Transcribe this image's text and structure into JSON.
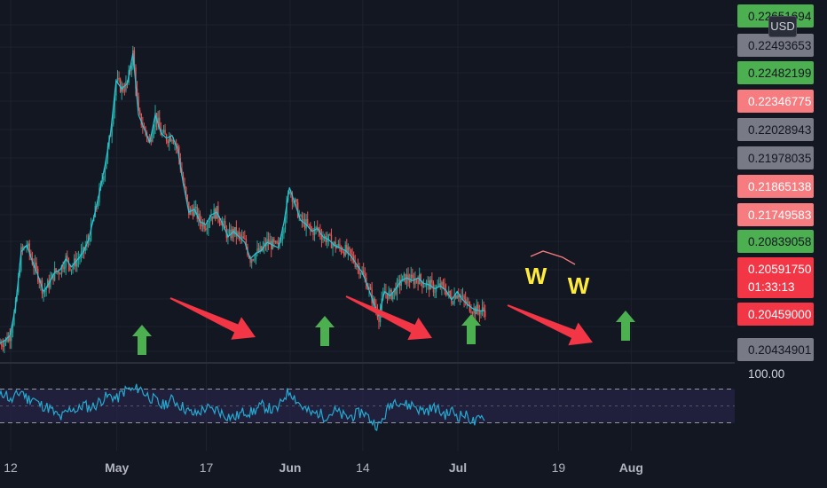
{
  "chart_data": [
    {
      "type": "candlestick",
      "title": "",
      "x_ticks": [
        "12",
        "May",
        "17",
        "Jun",
        "14",
        "Jul",
        "19",
        "Aug"
      ],
      "price_labels": [
        {
          "value": "0.22651694",
          "color": "#4caf50"
        },
        {
          "value": "0.22493653",
          "color": "#787b86"
        },
        {
          "value": "0.22482199",
          "color": "#4caf50"
        },
        {
          "value": "0.22346775",
          "color": "#f77c80"
        },
        {
          "value": "0.22028943",
          "color": "#787b86"
        },
        {
          "value": "0.21978035",
          "color": "#787b86"
        },
        {
          "value": "0.21865138",
          "color": "#f77c80"
        },
        {
          "value": "0.21749583",
          "color": "#f77c80"
        },
        {
          "value": "0.20839058",
          "color": "#4caf50"
        },
        {
          "value": "0.20591750",
          "color": "#f23645"
        },
        {
          "value": "0.20459000",
          "color": "#f23645"
        },
        {
          "value": "0.20434901",
          "color": "#787b86"
        }
      ],
      "current_price": "0.20591750",
      "countdown": "01:33:13",
      "currency": "USD",
      "price_path": [
        [
          "2021-04-10",
          0.2058
        ],
        [
          "2021-04-11",
          0.206
        ],
        [
          "2021-04-12",
          0.2064
        ],
        [
          "2021-04-13",
          0.2085
        ],
        [
          "2021-04-14",
          0.2125
        ],
        [
          "2021-04-15",
          0.213
        ],
        [
          "2021-04-16",
          0.2118
        ],
        [
          "2021-04-17",
          0.2108
        ],
        [
          "2021-04-18",
          0.2096
        ],
        [
          "2021-04-19",
          0.2102
        ],
        [
          "2021-04-20",
          0.211
        ],
        [
          "2021-04-21",
          0.2112
        ],
        [
          "2021-04-22",
          0.212
        ],
        [
          "2021-04-23",
          0.2114
        ],
        [
          "2021-04-24",
          0.2119
        ],
        [
          "2021-04-25",
          0.2124
        ],
        [
          "2021-04-26",
          0.2133
        ],
        [
          "2021-04-27",
          0.215
        ],
        [
          "2021-04-28",
          0.2168
        ],
        [
          "2021-04-29",
          0.2188
        ],
        [
          "2021-04-30",
          0.2212
        ],
        [
          "2021-05-01",
          0.225
        ],
        [
          "2021-05-02",
          0.2244
        ],
        [
          "2021-05-03",
          0.2248
        ],
        [
          "2021-05-04",
          0.227
        ],
        [
          "2021-05-05",
          0.2225
        ],
        [
          "2021-05-06",
          0.2215
        ],
        [
          "2021-05-07",
          0.2205
        ],
        [
          "2021-05-08",
          0.2225
        ],
        [
          "2021-05-09",
          0.2212
        ],
        [
          "2021-05-10",
          0.2208
        ],
        [
          "2021-05-11",
          0.221
        ],
        [
          "2021-05-12",
          0.22
        ],
        [
          "2021-05-13",
          0.2175
        ],
        [
          "2021-05-14",
          0.2154
        ],
        [
          "2021-05-15",
          0.2156
        ],
        [
          "2021-05-16",
          0.2147
        ],
        [
          "2021-05-17",
          0.2145
        ],
        [
          "2021-05-18",
          0.2152
        ],
        [
          "2021-05-19",
          0.2154
        ],
        [
          "2021-05-20",
          0.2146
        ],
        [
          "2021-05-21",
          0.2136
        ],
        [
          "2021-05-22",
          0.214
        ],
        [
          "2021-05-23",
          0.2136
        ],
        [
          "2021-05-24",
          0.2132
        ],
        [
          "2021-05-25",
          0.212
        ],
        [
          "2021-05-26",
          0.2124
        ],
        [
          "2021-05-27",
          0.2126
        ],
        [
          "2021-05-28",
          0.2132
        ],
        [
          "2021-05-29",
          0.213
        ],
        [
          "2021-05-30",
          0.2128
        ],
        [
          "2021-05-31",
          0.2146
        ],
        [
          "2021-06-01",
          0.2172
        ],
        [
          "2021-06-02",
          0.216
        ],
        [
          "2021-06-03",
          0.2148
        ],
        [
          "2021-06-04",
          0.2145
        ],
        [
          "2021-06-05",
          0.214
        ],
        [
          "2021-06-06",
          0.2142
        ],
        [
          "2021-06-07",
          0.2136
        ],
        [
          "2021-06-08",
          0.2134
        ],
        [
          "2021-06-09",
          0.213
        ],
        [
          "2021-06-10",
          0.2128
        ],
        [
          "2021-06-11",
          0.2126
        ],
        [
          "2021-06-12",
          0.2122
        ],
        [
          "2021-06-13",
          0.2116
        ],
        [
          "2021-06-14",
          0.211
        ],
        [
          "2021-06-15",
          0.21
        ],
        [
          "2021-06-16",
          0.2088
        ],
        [
          "2021-06-17",
          0.2078
        ],
        [
          "2021-06-18",
          0.2096
        ],
        [
          "2021-06-19",
          0.2093
        ],
        [
          "2021-06-20",
          0.2098
        ],
        [
          "2021-06-21",
          0.2104
        ],
        [
          "2021-06-22",
          0.2106
        ],
        [
          "2021-06-23",
          0.2104
        ],
        [
          "2021-06-24",
          0.2106
        ],
        [
          "2021-06-25",
          0.2102
        ],
        [
          "2021-06-26",
          0.2101
        ],
        [
          "2021-06-27",
          0.2098
        ],
        [
          "2021-06-28",
          0.21
        ],
        [
          "2021-06-29",
          0.2097
        ],
        [
          "2021-06-30",
          0.209
        ],
        [
          "2021-07-01",
          0.2096
        ],
        [
          "2021-07-02",
          0.209
        ],
        [
          "2021-07-03",
          0.2086
        ],
        [
          "2021-07-04",
          0.2083
        ],
        [
          "2021-07-05",
          0.2082
        ],
        [
          "2021-07-06",
          0.2082
        ]
      ],
      "annotations": {
        "w_labels": [
          "W",
          "W"
        ],
        "up_arrow_color": "#4caf50",
        "down_arrow_color": "#f23645",
        "w_color": "#ffeb3b"
      },
      "oscillator": {
        "label": "100.00",
        "upper_band": 70,
        "middle": 50,
        "lower_band": 30,
        "values": [
          60,
          67,
          55,
          62,
          68,
          58,
          60,
          52,
          50,
          47,
          40,
          36,
          42,
          48,
          44,
          52,
          48,
          50,
          56,
          60,
          62,
          58,
          66,
          70,
          68,
          72,
          65,
          60,
          56,
          50,
          54,
          58,
          52,
          48,
          42,
          40,
          44,
          48,
          44,
          46,
          40,
          38,
          36,
          40,
          44,
          42,
          46,
          50,
          48,
          44,
          48,
          62,
          68,
          58,
          50,
          44,
          40,
          42,
          38,
          40,
          44,
          40,
          36,
          38,
          40,
          44,
          36,
          30,
          26,
          40,
          52,
          58,
          54,
          50,
          52,
          46,
          44,
          46,
          48,
          42,
          40,
          44,
          38,
          40,
          36,
          30,
          34,
          40
        ]
      }
    }
  ],
  "colors": {
    "background": "#131722",
    "candle_up": "#26a69a",
    "candle_down": "#ef5350",
    "ma_line": "#26c6da",
    "oscillator_line": "#26a9d0",
    "band_fill": "#2a2650",
    "grid": "#1e222d"
  }
}
